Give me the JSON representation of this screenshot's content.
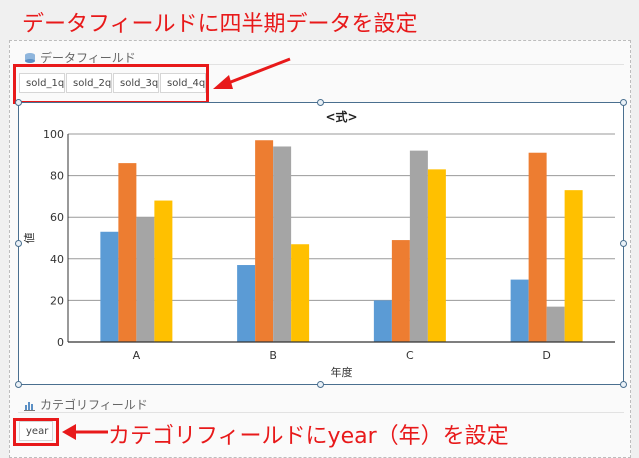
{
  "annotations": {
    "top": "データフィールドに四半期データを設定",
    "bottom": "カテゴリフィールドにyear（年）を設定"
  },
  "data_field": {
    "label": "データフィールド",
    "items": [
      "sold_1q",
      "sold_2q",
      "sold_3q",
      "sold_4q"
    ]
  },
  "category_field": {
    "label": "カテゴリフィールド",
    "items": [
      "year"
    ]
  },
  "colors": {
    "annotation": "#e8191a",
    "series": [
      "#5b9bd5",
      "#ed7d31",
      "#a5a5a5",
      "#ffc000"
    ]
  },
  "chart_data": {
    "type": "bar",
    "title": "<式>",
    "xlabel": "年度",
    "ylabel": "値",
    "categories": [
      "A",
      "B",
      "C",
      "D"
    ],
    "ylim": [
      0,
      100
    ],
    "yticks": [
      0,
      20,
      40,
      60,
      80,
      100
    ],
    "grid": true,
    "series": [
      {
        "values": [
          53,
          37,
          20,
          30
        ]
      },
      {
        "values": [
          86,
          97,
          49,
          91
        ]
      },
      {
        "values": [
          60,
          94,
          92,
          17
        ]
      },
      {
        "values": [
          68,
          47,
          83,
          73
        ]
      }
    ]
  }
}
